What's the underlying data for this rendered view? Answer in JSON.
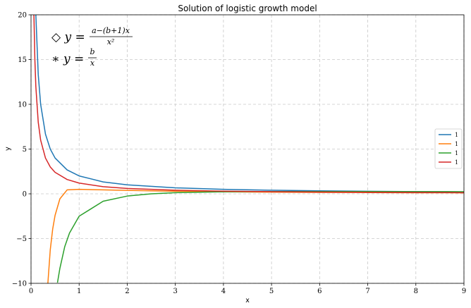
{
  "chart_data": {
    "type": "line",
    "title": "Solution of logistic growth model",
    "xlabel": "x",
    "ylabel": "y",
    "xlim": [
      0,
      9
    ],
    "ylim": [
      -10,
      20
    ],
    "xticks": [
      "0",
      "1",
      "2",
      "3",
      "4",
      "5",
      "6",
      "7",
      "8",
      "9"
    ],
    "yticks": [
      "−10",
      "−5",
      "0",
      "5",
      "10",
      "15",
      "20"
    ],
    "grid": true,
    "legend_position": "right",
    "annotations": {
      "eq1_sym": "◇ y =",
      "eq1_num": "a−(b+1)x",
      "eq1_den": "x²",
      "eq2_sym": "∗ y =",
      "eq2_num": "b",
      "eq2_den": "x"
    },
    "series": [
      {
        "name": "1",
        "color": "#1f77b4",
        "x": [
          0.1,
          0.15,
          0.2,
          0.3,
          0.4,
          0.5,
          0.75,
          1,
          1.5,
          2,
          3,
          4,
          5,
          6,
          7,
          8,
          9
        ],
        "y": [
          20,
          13.33,
          10,
          6.67,
          5,
          4,
          2.67,
          2,
          1.33,
          1,
          0.67,
          0.5,
          0.4,
          0.33,
          0.29,
          0.25,
          0.22
        ]
      },
      {
        "name": "1",
        "color": "#ff7f0e",
        "x": [
          0.35,
          0.4,
          0.45,
          0.5,
          0.6,
          0.75,
          1,
          1.5,
          2,
          3,
          4,
          5,
          6,
          7,
          8,
          9
        ],
        "y": [
          -10,
          -6.25,
          -3.95,
          -2.4,
          -0.56,
          0.44,
          0.5,
          0.44,
          0.38,
          0.29,
          0.23,
          0.19,
          0.16,
          0.14,
          0.12,
          0.11
        ]
      },
      {
        "name": "1",
        "color": "#2ca02c",
        "x": [
          0.55,
          0.6,
          0.7,
          0.8,
          1,
          1.5,
          2,
          2.5,
          3,
          4,
          5,
          6,
          7,
          8,
          9
        ],
        "y": [
          -9.92,
          -8.33,
          -5.92,
          -4.38,
          -2.5,
          -0.83,
          -0.25,
          0.0,
          0.13,
          0.23,
          0.26,
          0.26,
          0.26,
          0.25,
          0.24
        ]
      },
      {
        "name": "1",
        "color": "#d62728",
        "x": [
          0.06,
          0.08,
          0.1,
          0.15,
          0.2,
          0.3,
          0.4,
          0.5,
          0.75,
          1,
          1.5,
          2,
          3,
          4,
          5,
          6,
          7,
          8,
          9
        ],
        "y": [
          20,
          15,
          12,
          8,
          6,
          4,
          3,
          2.4,
          1.6,
          1.2,
          0.8,
          0.6,
          0.4,
          0.3,
          0.24,
          0.2,
          0.17,
          0.15,
          0.13
        ]
      }
    ]
  }
}
